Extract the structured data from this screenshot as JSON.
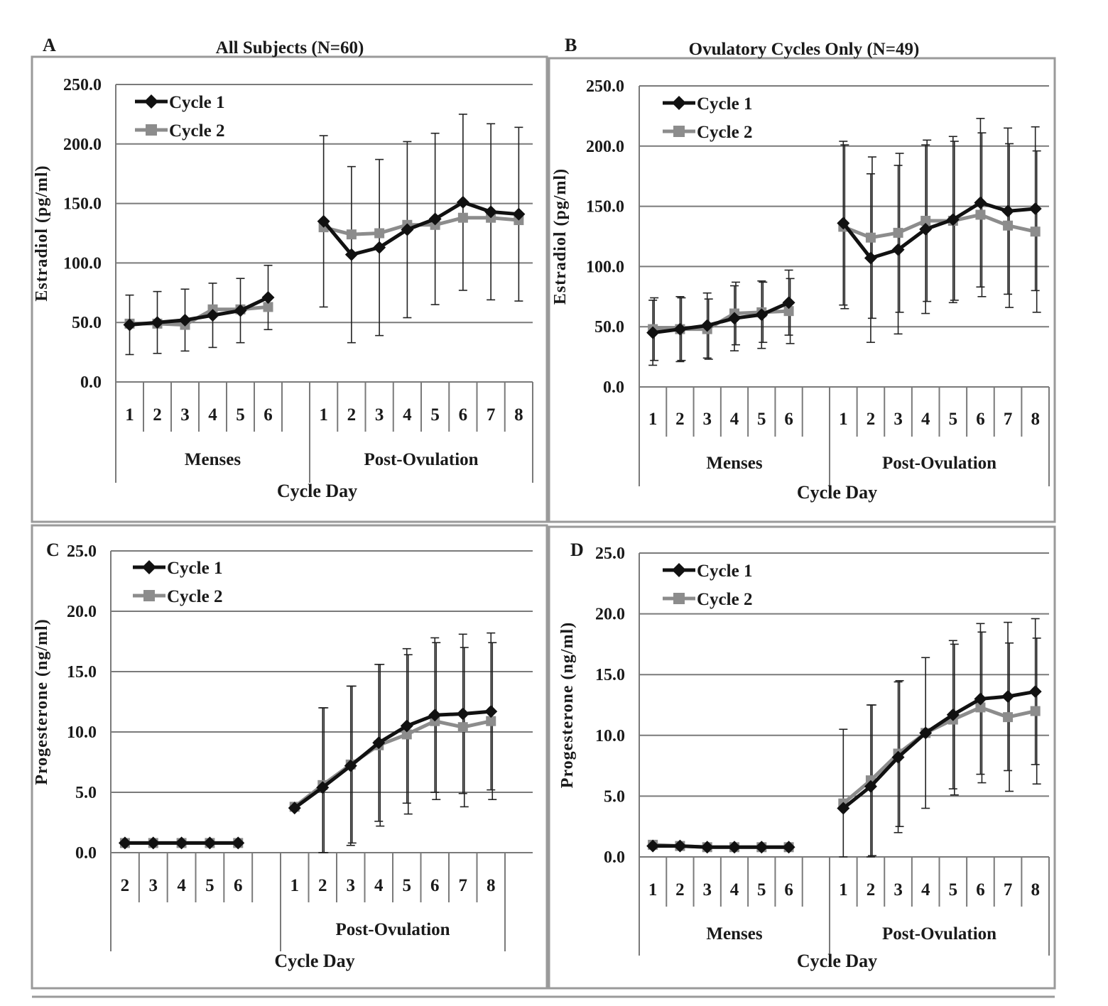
{
  "figure": {
    "colors": {
      "cycle1": "#111111",
      "cycle2": "#8c8c8c",
      "grid": "#7a7a7a",
      "border": "#9a9a9a",
      "text": "#1a1a1a"
    }
  },
  "chart_data": [
    {
      "panel_letter": "A",
      "type": "line",
      "title": "All Subjects (N=60)",
      "ylabel": "Estradiol (pg/ml)",
      "xlabel": "Cycle Day",
      "ylim": [
        0,
        250
      ],
      "yticks": [
        "0.0",
        "50.0",
        "100.0",
        "150.0",
        "200.0",
        "250.0"
      ],
      "grid": "horizontal",
      "legend": "top-left",
      "groups": [
        {
          "label": "Menses",
          "days": [
            "1",
            "2",
            "3",
            "4",
            "5",
            "6"
          ]
        },
        {
          "label": "Post-Ovulation",
          "days": [
            "1",
            "2",
            "3",
            "4",
            "5",
            "6",
            "7",
            "8"
          ]
        }
      ],
      "series": [
        {
          "name": "Cycle 1",
          "marker": "diamond",
          "values": [
            [
              48,
              50,
              52,
              56,
              60,
              71
            ],
            [
              135,
              107,
              113,
              128,
              137,
              151,
              143,
              141
            ]
          ],
          "errors": [
            [
              25,
              26,
              26,
              27,
              27,
              27
            ],
            [
              72,
              74,
              74,
              74,
              72,
              74,
              74,
              73
            ]
          ]
        },
        {
          "name": "Cycle 2",
          "marker": "square",
          "values": [
            [
              49,
              49,
              48,
              61,
              61,
              63
            ],
            [
              130,
              124,
              125,
              132,
              132,
              138,
              138,
              136
            ]
          ],
          "errors": null
        }
      ]
    },
    {
      "panel_letter": "B",
      "type": "line",
      "title": "Ovulatory Cycles Only (N=49)",
      "ylabel": "Estradiol (pg/ml)",
      "xlabel": "Cycle Day",
      "ylim": [
        0,
        250
      ],
      "yticks": [
        "0.0",
        "50.0",
        "100.0",
        "150.0",
        "200.0",
        "250.0"
      ],
      "grid": "horizontal",
      "legend": "top-left",
      "groups": [
        {
          "label": "Menses",
          "days": [
            "1",
            "2",
            "3",
            "4",
            "5",
            "6"
          ]
        },
        {
          "label": "Post-Ovulation",
          "days": [
            "1",
            "2",
            "3",
            "4",
            "5",
            "6",
            "7",
            "8"
          ]
        }
      ],
      "series": [
        {
          "name": "Cycle 1",
          "marker": "diamond",
          "values": [
            [
              45,
              48,
              51,
              57,
              60,
              70
            ],
            [
              136,
              107,
              114,
              131,
              139,
              153,
              146,
              148
            ]
          ],
          "errors": [
            [
              27,
              27,
              27,
              27,
              28,
              27
            ],
            [
              68,
              70,
              70,
              70,
              69,
              70,
              69,
              68
            ]
          ]
        },
        {
          "name": "Cycle 2",
          "marker": "square",
          "values": [
            [
              48,
              48,
              48,
              61,
              62,
              63
            ],
            [
              133,
              124,
              128,
              138,
              138,
              143,
              134,
              129
            ]
          ],
          "errors": [
            [
              26,
              26,
              25,
              26,
              25,
              27
            ],
            [
              68,
              67,
              66,
              67,
              66,
              68,
              68,
              67
            ]
          ]
        }
      ]
    },
    {
      "panel_letter": "C",
      "type": "line",
      "title": "",
      "ylabel": "Progesterone (ng/ml)",
      "xlabel": "Cycle Day",
      "ylim": [
        0,
        25
      ],
      "yticks": [
        "0.0",
        "5.0",
        "10.0",
        "15.0",
        "20.0",
        "25.0"
      ],
      "grid": "horizontal",
      "legend": "top-left",
      "groups": [
        {
          "label": "",
          "days": [
            "2",
            "3",
            "4",
            "5",
            "6"
          ]
        },
        {
          "label": "Post-Ovulation",
          "days": [
            "1",
            "2",
            "3",
            "4",
            "5",
            "6",
            "7",
            "8"
          ]
        }
      ],
      "series": [
        {
          "name": "Cycle 1",
          "marker": "diamond",
          "values": [
            [
              0.8,
              0.8,
              0.8,
              0.8,
              0.8
            ],
            [
              3.7,
              5.4,
              7.2,
              9.1,
              10.5,
              11.4,
              11.5,
              11.7
            ]
          ],
          "errors": [
            [
              0,
              0,
              0,
              0,
              0
            ],
            [
              0,
              6.6,
              6.6,
              6.5,
              6.4,
              6.4,
              6.6,
              6.5
            ]
          ]
        },
        {
          "name": "Cycle 2",
          "marker": "square",
          "values": [
            [
              0.8,
              0.8,
              0.8,
              0.8,
              0.8
            ],
            [
              3.8,
              5.6,
              7.3,
              8.9,
              9.8,
              10.9,
              10.4,
              10.9
            ]
          ],
          "errors": [
            [
              0,
              0,
              0,
              0,
              0
            ],
            [
              0,
              6.4,
              6.5,
              6.7,
              6.6,
              6.5,
              6.6,
              6.5
            ]
          ]
        }
      ]
    },
    {
      "panel_letter": "D",
      "type": "line",
      "title": "",
      "ylabel": "Progesterone (ng/ml)",
      "xlabel": "Cycle Day",
      "ylim": [
        0,
        25
      ],
      "yticks": [
        "0.0",
        "5.0",
        "10.0",
        "15.0",
        "20.0",
        "25.0"
      ],
      "grid": "horizontal",
      "legend": "top-left",
      "groups": [
        {
          "label": "Menses",
          "days": [
            "1",
            "2",
            "3",
            "4",
            "5",
            "6"
          ]
        },
        {
          "label": "Post-Ovulation",
          "days": [
            "1",
            "2",
            "3",
            "4",
            "5",
            "6",
            "7",
            "8"
          ]
        }
      ],
      "series": [
        {
          "name": "Cycle 1",
          "marker": "diamond",
          "values": [
            [
              0.9,
              0.9,
              0.8,
              0.8,
              0.8,
              0.8
            ],
            [
              4.0,
              5.8,
              8.2,
              10.2,
              11.7,
              13.0,
              13.2,
              13.6
            ]
          ],
          "errors": [
            [
              0,
              0,
              0,
              0,
              0,
              0
            ],
            [
              6.5,
              6.7,
              6.2,
              6.2,
              6.1,
              6.2,
              6.1,
              6.0
            ]
          ]
        },
        {
          "name": "Cycle 2",
          "marker": "square",
          "values": [
            [
              1.0,
              0.9,
              0.8,
              0.8,
              0.8,
              0.8
            ],
            [
              4.4,
              6.3,
              8.5,
              10.2,
              11.3,
              12.3,
              11.5,
              12.0
            ]
          ],
          "errors": [
            [
              0,
              0,
              0,
              0,
              0,
              0
            ],
            [
              0,
              6.2,
              6.0,
              0,
              6.2,
              6.2,
              6.1,
              6.0
            ]
          ]
        }
      ]
    }
  ]
}
